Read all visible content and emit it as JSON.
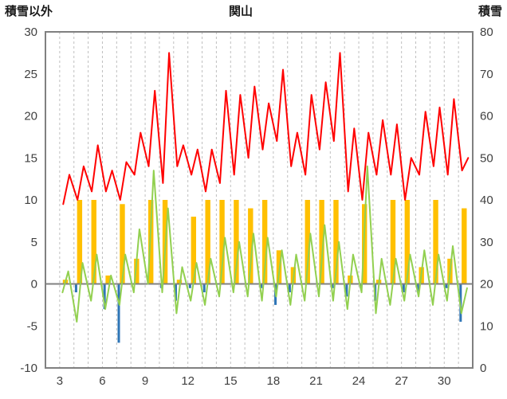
{
  "chart_data": {
    "type": "combo",
    "title": "関山",
    "left_axis": {
      "label": "積雪以外",
      "min": -10,
      "max": 30,
      "tick_step": 5,
      "ticks": [
        30,
        25,
        20,
        15,
        10,
        5,
        0,
        -5,
        -10
      ]
    },
    "right_axis": {
      "label": "積雪",
      "min": 0,
      "max": 80,
      "tick_step": 10,
      "ticks": [
        80,
        70,
        60,
        50,
        40,
        30,
        20,
        10,
        0
      ]
    },
    "x_axis": {
      "min": 2,
      "max": 32,
      "tick_days": [
        3,
        6,
        9,
        12,
        15,
        18,
        21,
        24,
        27,
        30
      ],
      "gridline_days": [
        3,
        4,
        5,
        6,
        7,
        8,
        9,
        10,
        11,
        12,
        13,
        14,
        15,
        16,
        17,
        18,
        19,
        20,
        21,
        22,
        23,
        24,
        25,
        26,
        27,
        28,
        29,
        30,
        31
      ],
      "grid": "vertical-dashed"
    },
    "days": [
      3,
      4,
      5,
      6,
      7,
      8,
      9,
      10,
      11,
      12,
      13,
      14,
      15,
      16,
      17,
      18,
      19,
      20,
      21,
      22,
      23,
      24,
      25,
      26,
      27,
      28,
      29,
      30,
      31
    ],
    "series": [
      {
        "id": "red_line",
        "type": "line",
        "axis": "left",
        "color": "#FF0000",
        "daily_min": [
          9.5,
          10,
          11,
          11,
          10,
          13,
          14,
          12,
          14,
          13,
          11,
          12,
          13,
          15,
          16,
          17,
          14,
          13,
          16,
          17,
          11,
          10,
          13,
          13,
          10,
          13,
          14,
          13,
          13.5
        ],
        "daily_max": [
          13,
          14,
          16.5,
          13.5,
          14.5,
          18,
          23,
          27.5,
          16.5,
          16,
          16,
          23,
          22.5,
          23.5,
          21.5,
          25.5,
          18,
          22.5,
          24,
          27.5,
          18.5,
          18,
          19.5,
          19,
          15,
          20.5,
          21,
          22,
          15
        ]
      },
      {
        "id": "green_line",
        "type": "line",
        "axis": "left",
        "color": "#92D050",
        "daily_min": [
          -1,
          -4.5,
          -2,
          -3,
          -2.5,
          -1,
          0,
          -1,
          -3.5,
          -2,
          -2.5,
          -1.5,
          -1,
          -1.5,
          -2,
          -1.5,
          -2.5,
          -2,
          -1.5,
          -2,
          -3,
          -1,
          -3.5,
          -2.5,
          -2,
          -1.5,
          -2.5,
          -2,
          -3.5
        ],
        "daily_max": [
          1.5,
          2.5,
          3.5,
          1,
          3.5,
          6.5,
          13.5,
          9,
          2,
          2.5,
          3,
          5.5,
          5,
          6,
          5.5,
          4,
          3.5,
          6,
          7,
          5,
          3.5,
          14,
          3,
          3,
          3.5,
          4,
          3.5,
          4.5,
          -0.5
        ]
      },
      {
        "id": "orange_bars",
        "type": "bar",
        "axis": "left",
        "color": "#FFC000",
        "values": [
          0.5,
          10,
          10,
          1,
          9.5,
          3,
          10,
          10,
          0.5,
          8,
          10,
          10,
          10,
          9,
          10,
          4,
          2,
          10,
          10,
          10,
          1,
          9.5,
          0.5,
          10,
          10,
          2,
          10,
          3,
          9
        ]
      },
      {
        "id": "blue_bars",
        "type": "bar",
        "axis": "left",
        "color": "#2E75B6",
        "values": [
          0,
          -1,
          0,
          -3,
          -7,
          0,
          0,
          -0.5,
          -2,
          -0.5,
          -1,
          0,
          0,
          0,
          -0.5,
          -2.5,
          -1,
          0,
          0,
          -0.5,
          -1.5,
          -0.5,
          -2,
          0,
          -1,
          -1,
          0,
          -0.5,
          -4.5
        ]
      }
    ],
    "style": {
      "grid_color": "#BFBFBF",
      "border_color": "#808080",
      "zero_line_color": "#808080",
      "text_color": "#404040",
      "background": "#FFFFFF"
    }
  }
}
